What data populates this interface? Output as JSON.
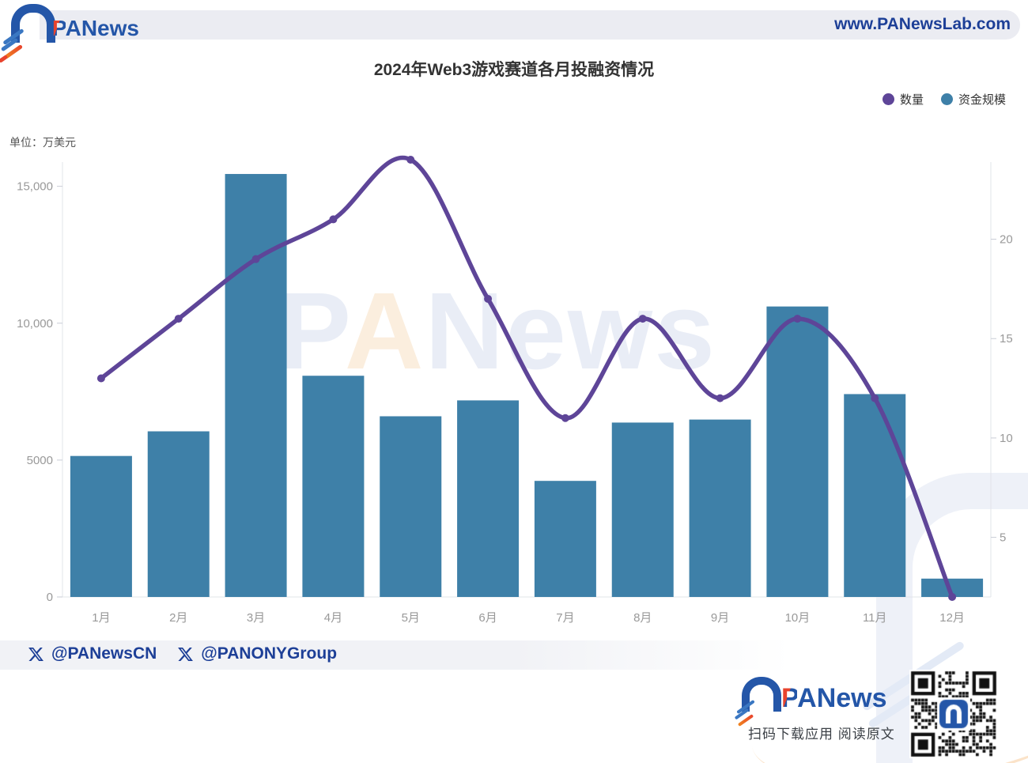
{
  "header": {
    "logo_text_p": "P",
    "logo_text_rest": "ANews",
    "site_url": "www.PANewsLab.com"
  },
  "chart_data": {
    "type": "bar",
    "subtype": "combo-bar-line",
    "title": "2024年Web3游戏赛道各月投融资情况",
    "unit_label": "单位：万美元",
    "categories": [
      "1月",
      "2月",
      "3月",
      "4月",
      "5月",
      "6月",
      "7月",
      "8月",
      "9月",
      "10月",
      "11月",
      "12月"
    ],
    "series": [
      {
        "name": "数量",
        "type": "line",
        "axis": "right",
        "color": "#5e4598",
        "values": [
          13,
          16,
          19,
          21,
          24,
          17,
          11,
          16,
          12,
          16,
          12,
          2
        ]
      },
      {
        "name": "资金规模",
        "type": "bar",
        "axis": "left",
        "color": "#3e80a8",
        "values": [
          5150,
          6050,
          15450,
          8080,
          6600,
          7180,
          4240,
          6370,
          6480,
          10610,
          7410,
          670
        ]
      }
    ],
    "left_axis": {
      "tick_labels": [
        "0",
        "5000",
        "10,000",
        "15,000"
      ],
      "tick_values": [
        0,
        5000,
        10000,
        15000
      ],
      "min": 0,
      "max": 16000
    },
    "right_axis": {
      "tick_labels": [
        "5",
        "10",
        "15",
        "20"
      ],
      "tick_values": [
        5,
        10,
        15,
        20
      ],
      "min": 2,
      "max": 24
    },
    "xlabel": "",
    "ylabel": "单位：万美元",
    "grid": false,
    "legend_position": "top-right"
  },
  "watermark": {
    "center_text_p": "P",
    "center_text_a": "A",
    "center_text_rest": "News"
  },
  "footer": {
    "handles": [
      {
        "label": "@PANewsCN"
      },
      {
        "label": "@PANONYGroup"
      }
    ],
    "logo_text_p": "P",
    "logo_text_rest": "ANews",
    "tagline": "扫码下载应用 阅读原文"
  },
  "colors": {
    "brand_blue": "#2456a8",
    "brand_navy": "#1d3f97",
    "accent_red": "#e8432d",
    "accent_orange": "#f0851f",
    "count_purple": "#5e4598",
    "funding_teal": "#3e80a8",
    "axis_label_gray": "#999999",
    "axis_line_gray": "#e2e4ea"
  }
}
